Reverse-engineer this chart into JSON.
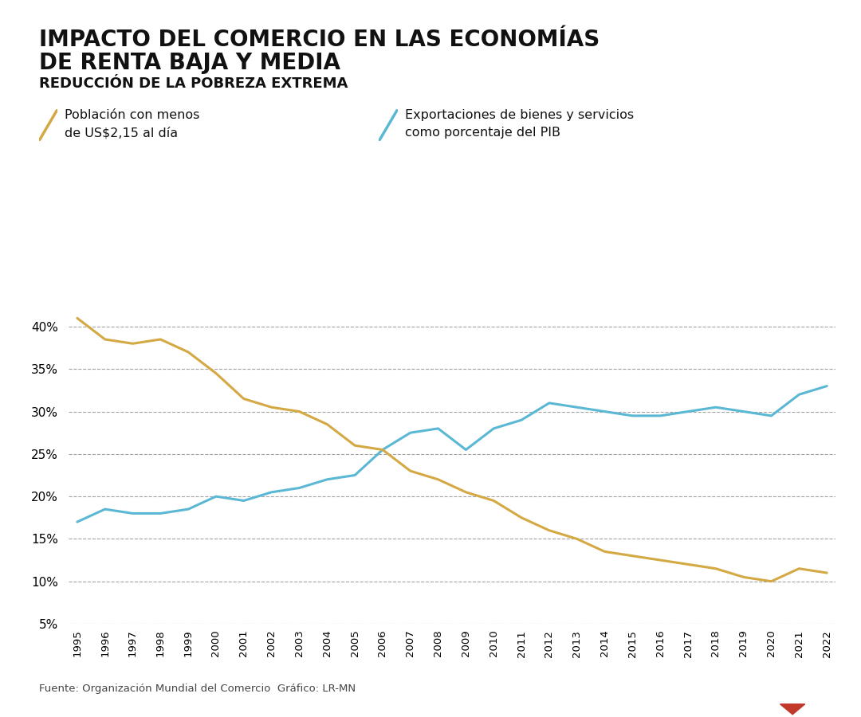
{
  "title_line1": "IMPACTO DEL COMERCIO EN LAS ECONOMÍAS",
  "title_line2": "DE RENTA BAJA Y MEDIA",
  "subtitle": "REDUCCIÓN DE LA POBREZA EXTREMA",
  "legend1_label": "Población con menos\nde US$2,15 al día",
  "legend2_label": "Exportaciones de bienes y servicios\ncomo porcentaje del PIB",
  "source": "Fuente: Organización Mundial del Comercio  Gráfico: LR-MN",
  "color_poverty": "#D4A843",
  "color_exports": "#5BB8D4",
  "top_bar_color": "#111111",
  "background_color": "#ffffff",
  "years": [
    1995,
    1996,
    1997,
    1998,
    1999,
    2000,
    2001,
    2002,
    2003,
    2004,
    2005,
    2006,
    2007,
    2008,
    2009,
    2010,
    2011,
    2012,
    2013,
    2014,
    2015,
    2016,
    2017,
    2018,
    2019,
    2020,
    2021,
    2022
  ],
  "poverty": [
    41.0,
    38.5,
    38.0,
    38.5,
    37.0,
    34.5,
    31.5,
    30.5,
    30.0,
    28.5,
    26.0,
    25.5,
    23.0,
    22.0,
    20.5,
    19.5,
    17.5,
    16.0,
    15.0,
    13.5,
    13.0,
    12.5,
    12.0,
    11.5,
    10.5,
    10.0,
    11.5,
    11.0
  ],
  "exports": [
    17.0,
    18.5,
    18.0,
    18.0,
    18.5,
    20.0,
    19.5,
    20.5,
    21.0,
    22.0,
    22.5,
    25.5,
    27.5,
    28.0,
    25.5,
    28.0,
    29.0,
    31.0,
    30.5,
    30.0,
    29.5,
    29.5,
    30.0,
    30.5,
    30.0,
    29.5,
    32.0,
    33.0
  ],
  "ylim": [
    5,
    43
  ],
  "yticks": [
    5,
    10,
    15,
    20,
    25,
    30,
    35,
    40
  ]
}
